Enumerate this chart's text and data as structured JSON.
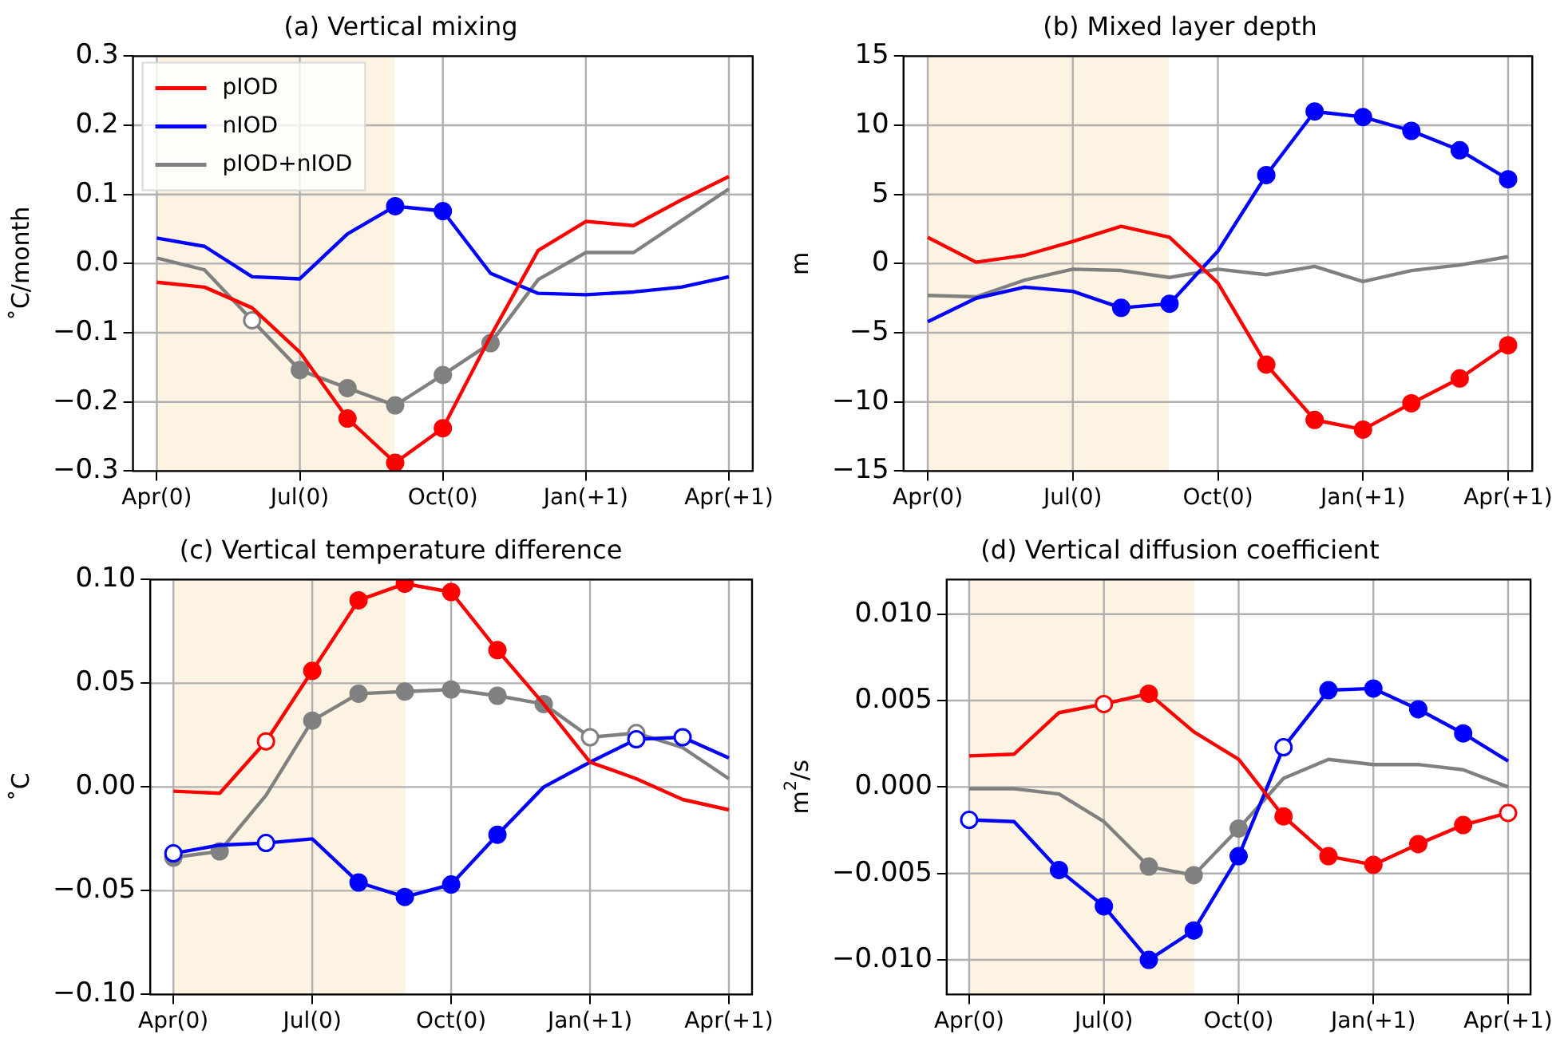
{
  "chart_data": [
    {
      "type": "line",
      "title": "(a) Vertical mixing",
      "ylabel": "˚C/month",
      "categories": [
        "Apr(0)",
        null,
        null,
        "Jul(0)",
        null,
        null,
        "Oct(0)",
        null,
        null,
        "Jan(+1)",
        null,
        null,
        "Apr(+1)"
      ],
      "ylim": [
        -0.3,
        0.3
      ],
      "yticks": [
        {
          "value": -0.3,
          "label": "−0.3"
        },
        {
          "value": -0.2,
          "label": "−0.2"
        },
        {
          "value": -0.1,
          "label": "−0.1"
        },
        {
          "value": 0,
          "label": "0.0"
        },
        {
          "value": 0.1,
          "label": "0.1"
        },
        {
          "value": 0.2,
          "label": "0.2"
        },
        {
          "value": 0.3,
          "label": "0.3"
        }
      ],
      "grid": true,
      "legend": "top left",
      "series": [
        {
          "name": "pIOD",
          "color": "#ff0000",
          "values": [
            -0.027,
            -0.034,
            -0.064,
            -0.128,
            -0.224,
            -0.288,
            -0.238,
            -0.105,
            0.019,
            0.061,
            0.055,
            0.092,
            0.126
          ],
          "marker": [
            "none",
            "none",
            "none",
            "none",
            "circle",
            "circle",
            "circle",
            "none",
            "none",
            "none",
            "none",
            "none",
            "none"
          ]
        },
        {
          "name": "nIOD",
          "color": "#0000ff",
          "values": [
            0.037,
            0.025,
            -0.019,
            -0.022,
            0.043,
            0.083,
            0.076,
            -0.014,
            -0.043,
            -0.045,
            -0.041,
            -0.034,
            -0.019
          ],
          "marker": [
            "none",
            "none",
            "none",
            "none",
            "none",
            "circle",
            "circle",
            "none",
            "none",
            "none",
            "none",
            "none",
            "none"
          ]
        },
        {
          "name": "pIOD+nIOD",
          "color": "#808080",
          "values": [
            0.008,
            -0.009,
            -0.082,
            -0.154,
            -0.18,
            -0.205,
            -0.161,
            -0.115,
            -0.023,
            0.016,
            0.016,
            0.062,
            0.108
          ],
          "marker": [
            "none",
            "none",
            "circle-open",
            "circle",
            "circle",
            "circle",
            "circle",
            "circle",
            "none",
            "none",
            "none",
            "none",
            "none"
          ]
        }
      ]
    },
    {
      "type": "line",
      "title": "(b) Mixed layer depth",
      "ylabel": "m",
      "categories": [
        "Apr(0)",
        null,
        null,
        "Jul(0)",
        null,
        null,
        "Oct(0)",
        null,
        null,
        "Jan(+1)",
        null,
        null,
        "Apr(+1)"
      ],
      "ylim": [
        -15,
        15
      ],
      "yticks": [
        {
          "value": -15,
          "label": "−15"
        },
        {
          "value": -10,
          "label": "−10"
        },
        {
          "value": -5,
          "label": "−5"
        },
        0,
        5,
        10,
        15
      ],
      "grid": true,
      "series": [
        {
          "color": "#ff0000",
          "values": [
            1.9,
            0.1,
            0.6,
            1.6,
            2.7,
            1.9,
            -1.4,
            -7.3,
            -11.3,
            -12.0,
            -10.1,
            -8.3,
            -5.9
          ],
          "marker": [
            "none",
            "none",
            "none",
            "none",
            "none",
            "none",
            "none",
            "circle",
            "circle",
            "circle",
            "circle",
            "circle",
            "circle"
          ]
        },
        {
          "color": "#0000ff",
          "values": [
            -4.2,
            -2.5,
            -1.7,
            -2.0,
            -3.2,
            -2.9,
            0.9,
            6.4,
            11.0,
            10.6,
            9.6,
            8.2,
            6.1
          ],
          "marker": [
            "none",
            "none",
            "none",
            "none",
            "circle",
            "circle",
            "none",
            "circle",
            "circle",
            "circle",
            "circle",
            "circle",
            "circle"
          ]
        },
        {
          "color": "#808080",
          "values": [
            -2.3,
            -2.4,
            -1.2,
            -0.4,
            -0.5,
            -1.0,
            -0.4,
            -0.8,
            -0.2,
            -1.3,
            -0.5,
            -0.1,
            0.5
          ],
          "marker": [
            "none",
            "none",
            "none",
            "none",
            "none",
            "none",
            "none",
            "none",
            "none",
            "none",
            "none",
            "none",
            "none"
          ]
        }
      ]
    },
    {
      "type": "line",
      "title": "(c) Vertical temperature difference",
      "ylabel": "˚C",
      "categories": [
        "Apr(0)",
        null,
        null,
        "Jul(0)",
        null,
        null,
        "Oct(0)",
        null,
        null,
        "Jan(+1)",
        null,
        null,
        "Apr(+1)"
      ],
      "ylim": [
        -0.1,
        0.1
      ],
      "yticks": [
        {
          "value": -0.1,
          "label": "−0.10"
        },
        {
          "value": -0.05,
          "label": "−0.05"
        },
        {
          "value": 0,
          "label": "0.00"
        },
        {
          "value": 0.05,
          "label": "0.05"
        },
        {
          "value": 0.1,
          "label": "0.10"
        }
      ],
      "grid": true,
      "series": [
        {
          "color": "#ff0000",
          "values": [
            -0.002,
            -0.003,
            0.022,
            0.056,
            0.09,
            0.098,
            0.094,
            0.066,
            0.04,
            0.012,
            0.004,
            -0.006,
            -0.011
          ],
          "marker": [
            "none",
            "none",
            "circle-open",
            "circle",
            "circle",
            "circle",
            "circle",
            "circle",
            "none",
            "none",
            "none",
            "none",
            "none"
          ]
        },
        {
          "color": "#0000ff",
          "values": [
            -0.032,
            -0.028,
            -0.027,
            -0.025,
            -0.046,
            -0.053,
            -0.047,
            -0.023,
            0.0,
            0.012,
            0.023,
            0.024,
            0.014
          ],
          "marker": [
            "circle-open",
            "none",
            "circle-open",
            "none",
            "circle",
            "circle",
            "circle",
            "circle",
            "none",
            "none",
            "circle-open",
            "circle-open",
            "none"
          ]
        },
        {
          "color": "#808080",
          "values": [
            -0.034,
            -0.031,
            -0.004,
            0.032,
            0.045,
            0.046,
            0.047,
            0.044,
            0.04,
            0.024,
            0.026,
            0.019,
            0.004
          ],
          "marker": [
            "circle",
            "circle",
            "none",
            "circle",
            "circle",
            "circle",
            "circle",
            "circle",
            "circle",
            "circle-open",
            "circle-open",
            "none",
            "none"
          ]
        }
      ]
    },
    {
      "type": "line",
      "title": "(d) Vertical diffusion coefficient",
      "ylabel": "m$^{2}$/s",
      "categories": [
        "Apr(0)",
        null,
        null,
        "Jul(0)",
        null,
        null,
        "Oct(0)",
        null,
        null,
        "Jan(+1)",
        null,
        null,
        "Apr(+1)"
      ],
      "ylim": [
        -0.012,
        0.012
      ],
      "yticks": [
        {
          "value": -0.01,
          "label": "−0.010"
        },
        {
          "value": -0.005,
          "label": "−0.005"
        },
        {
          "value": 0,
          "label": "0.000"
        },
        {
          "value": 0.005,
          "label": "0.005"
        },
        {
          "value": 0.01,
          "label": "0.010"
        }
      ],
      "grid": true,
      "series": [
        {
          "color": "#ff0000",
          "values": [
            0.0018,
            0.0019,
            0.0043,
            0.0048,
            0.0054,
            0.0032,
            0.0016,
            -0.0017,
            -0.004,
            -0.0045,
            -0.0033,
            -0.0022,
            -0.0015
          ],
          "marker": [
            "none",
            "none",
            "none",
            "circle-open",
            "circle",
            "none",
            "none",
            "circle",
            "circle",
            "circle",
            "circle",
            "circle",
            "circle-open"
          ]
        },
        {
          "color": "#0000ff",
          "values": [
            -0.0019,
            -0.002,
            -0.0048,
            -0.0069,
            -0.01,
            -0.0083,
            -0.004,
            0.0023,
            0.0056,
            0.0057,
            0.0045,
            0.0031,
            0.0015
          ],
          "marker": [
            "circle-open",
            "none",
            "circle",
            "circle",
            "circle",
            "circle",
            "circle",
            "circle-open",
            "circle",
            "circle",
            "circle",
            "circle",
            "none"
          ]
        },
        {
          "color": "#808080",
          "values": [
            -0.0001,
            -0.0001,
            -0.0004,
            -0.002,
            -0.0046,
            -0.0051,
            -0.0024,
            0.0005,
            0.0016,
            0.0013,
            0.0013,
            0.001,
            0.0
          ],
          "marker": [
            "none",
            "none",
            "none",
            "none",
            "circle",
            "circle",
            "circle",
            "none",
            "none",
            "none",
            "none",
            "none",
            "none"
          ]
        }
      ]
    }
  ]
}
